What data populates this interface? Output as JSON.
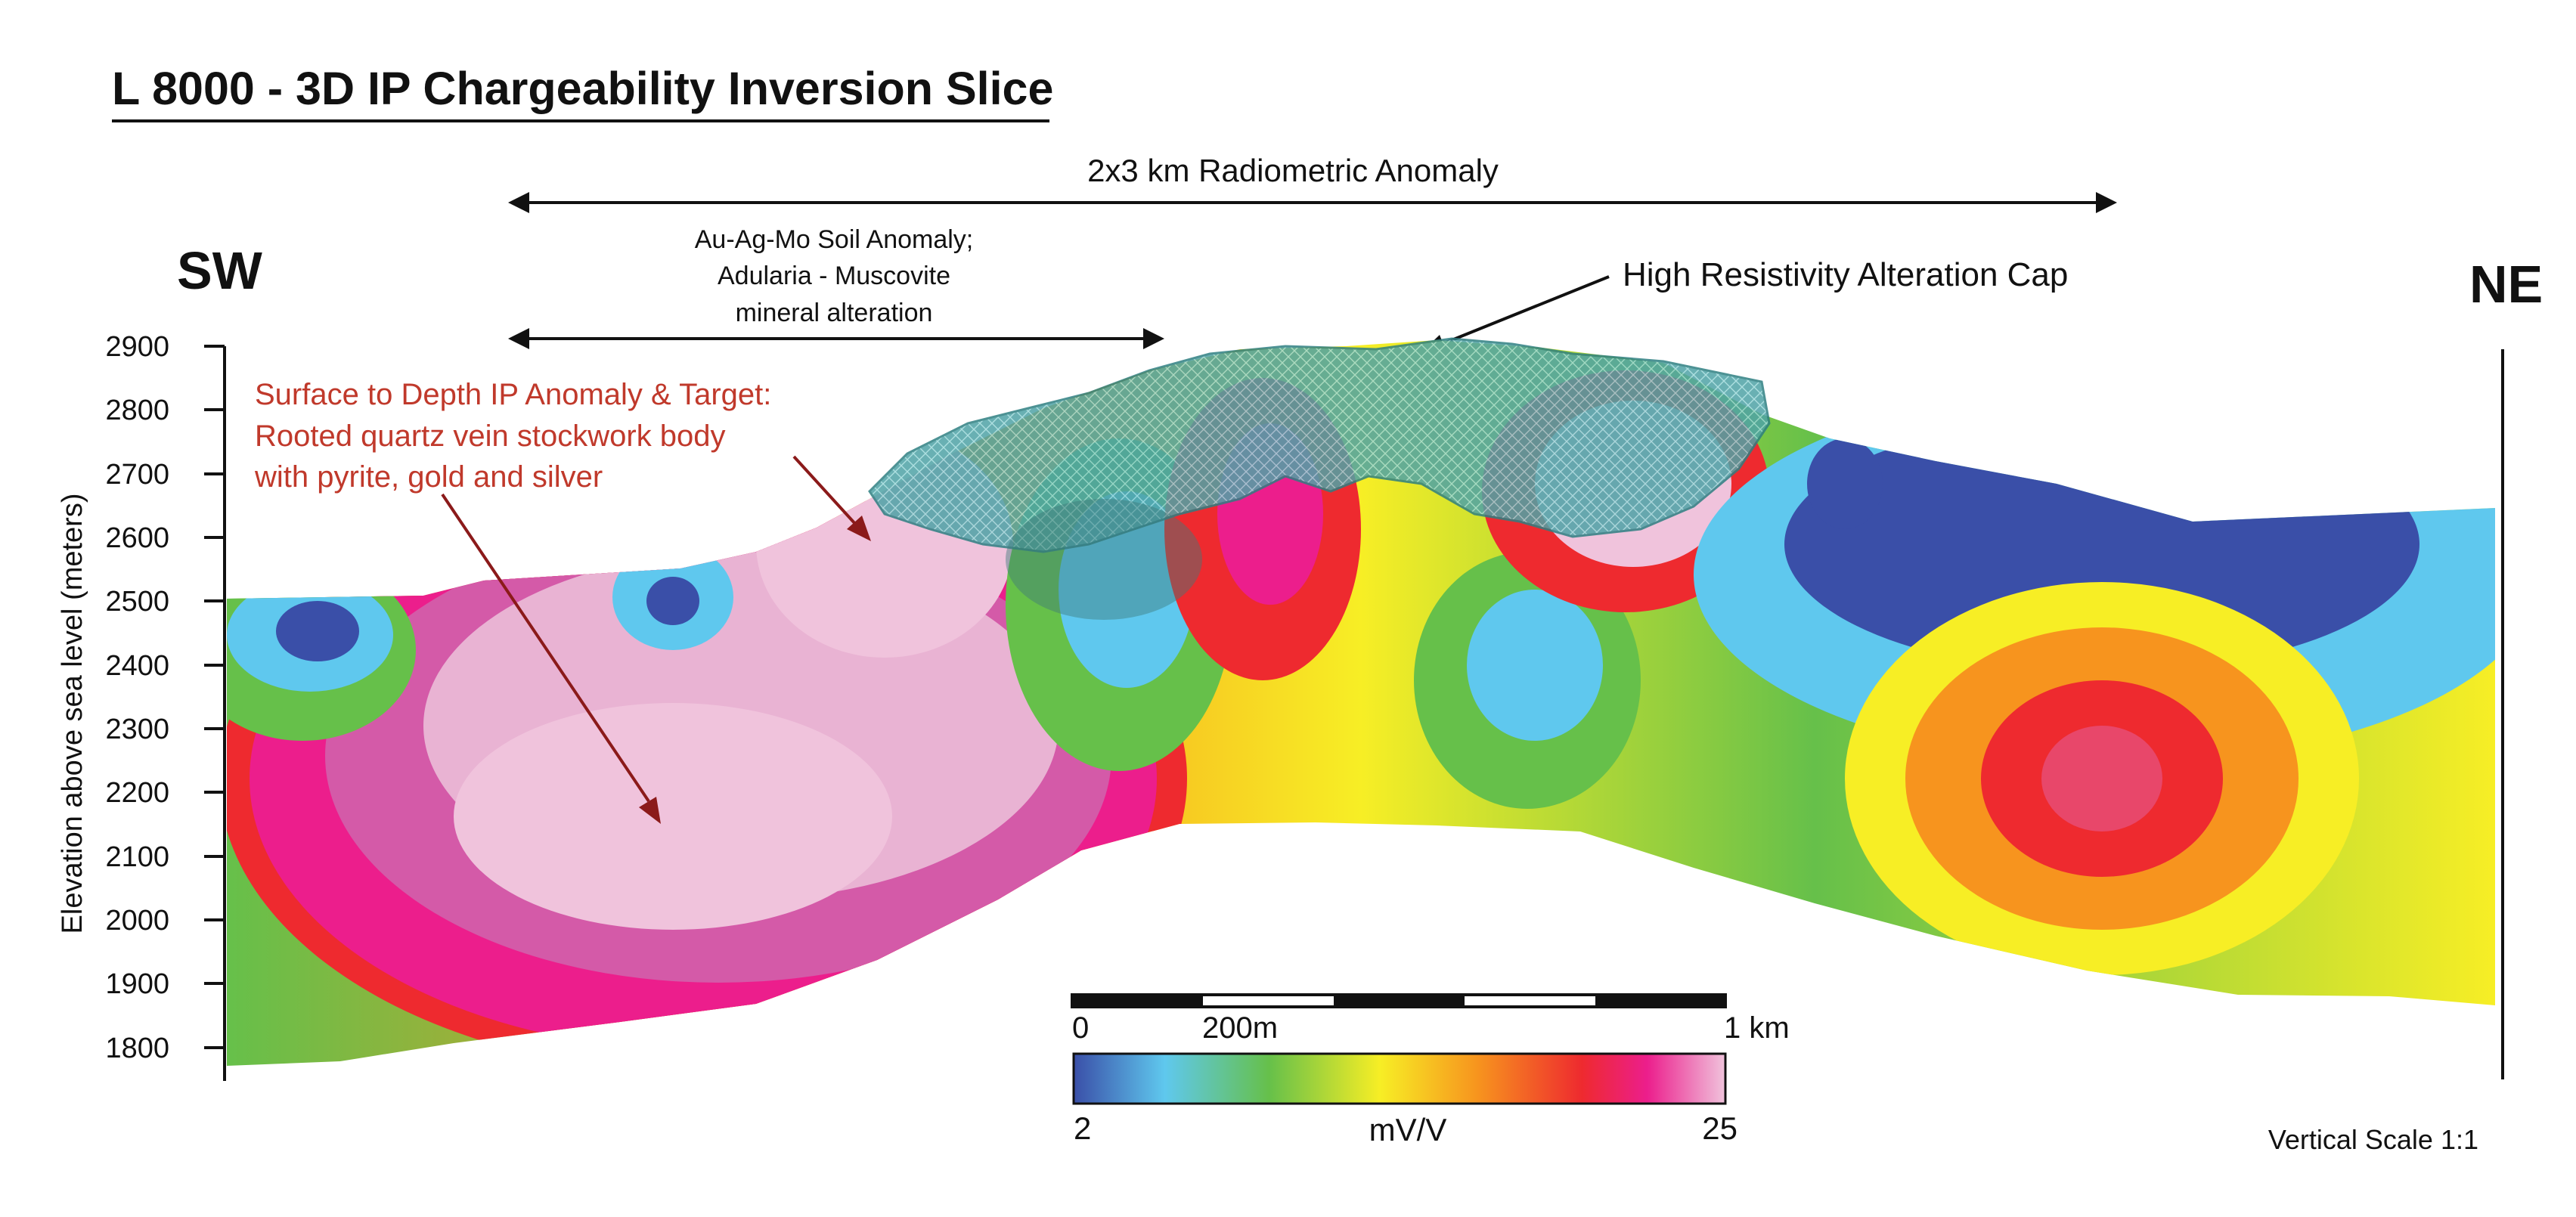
{
  "title": "L 8000 - 3D IP Chargeability Inversion Slice",
  "direction_left": "SW",
  "direction_right": "NE",
  "radiometric_anomaly_label": "2x3 km Radiometric Anomaly",
  "soil_anomaly_label": [
    "Au-Ag-Mo Soil Anomaly;",
    "Adularia - Muscovite",
    "mineral alteration"
  ],
  "resistivity_cap_label": "High Resistivity Alteration Cap",
  "target_label": [
    "Surface to Depth IP Anomaly & Target:",
    "Rooted quartz vein stockwork body",
    "with pyrite, gold and silver"
  ],
  "y_axis": {
    "label": "Elevation above sea level (meters)",
    "ticks": [
      "2900",
      "2800",
      "2700",
      "2600",
      "2500",
      "2400",
      "2300",
      "2200",
      "2100",
      "2000",
      "1900",
      "1800"
    ]
  },
  "scale_bar": {
    "start": "0",
    "mid": "200m",
    "end": "1 km"
  },
  "color_bar": {
    "min": "2",
    "max": "25",
    "unit": "mV/V",
    "colors": [
      "#3a4fa8",
      "#5fc8ee",
      "#66c04a",
      "#f7ee25",
      "#f7941e",
      "#ee2a2f",
      "#ec1e8c",
      "#f0c3dc"
    ]
  },
  "vertical_scale_note": "Vertical Scale 1:1"
}
